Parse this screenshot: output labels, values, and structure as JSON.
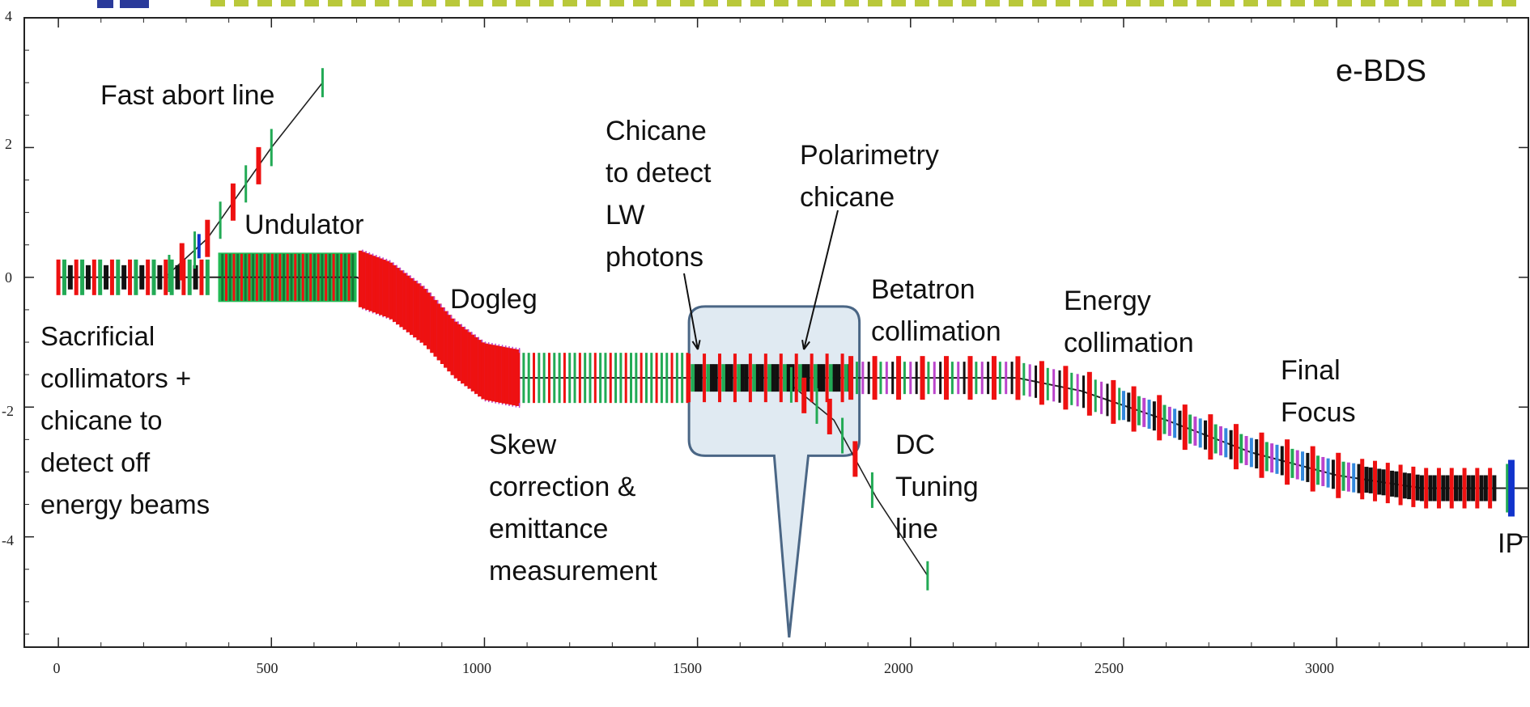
{
  "diagram_title": "e-BDS",
  "labels": {
    "fast_abort": "Fast abort line",
    "undulator": "Undulator",
    "dogleg": "Dogleg",
    "sacrificial": "Sacrificial\ncollimators +\nchicane to\ndetect off\nenergy beams",
    "chicane_lw": "Chicane\nto detect\nLW\nphotons",
    "polarimetry": "Polarimetry\nchicane",
    "betatron": "Betatron\ncollimation",
    "energy": "Energy\ncollimation",
    "final_focus": "Final\nFocus",
    "skew": "Skew\ncorrection &\nemittance\nmeasurement",
    "dc_tuning": "DC\nTuning\n line",
    "ip": "IP"
  },
  "axes": {
    "x_ticks": [
      "0",
      "500",
      "1000",
      "1500",
      "2000",
      "2500",
      "3000"
    ],
    "y_ticks": [
      "4",
      "2",
      "0",
      "-2",
      "-4"
    ],
    "xlim": [
      -80,
      3450
    ],
    "ylim": [
      -5.7,
      4
    ]
  },
  "colors": {
    "dipole": "#ee1111",
    "quad": "#22aa55",
    "sext": "#1133cc",
    "dark": "#111111",
    "undulator": "#22bb55",
    "purple": "#bb44cc",
    "callout_fill": "#dbe6f0",
    "callout_stroke": "#4a6685",
    "header_dots": "#b9c83a"
  },
  "beamline": {
    "main_path": [
      [
        0,
        0
      ],
      [
        350,
        0
      ],
      [
        700,
        0
      ],
      [
        780,
        -0.2
      ],
      [
        860,
        -0.6
      ],
      [
        930,
        -1.1
      ],
      [
        1000,
        -1.45
      ],
      [
        1080,
        -1.55
      ],
      [
        1500,
        -1.55
      ],
      [
        1850,
        -1.55
      ],
      [
        2250,
        -1.55
      ],
      [
        2400,
        -1.75
      ],
      [
        2600,
        -2.2
      ],
      [
        2800,
        -2.7
      ],
      [
        3000,
        -3.05
      ],
      [
        3200,
        -3.25
      ],
      [
        3450,
        -3.25
      ]
    ],
    "abort_path": [
      [
        250,
        0
      ],
      [
        350,
        0.6
      ],
      [
        500,
        2.0
      ],
      [
        620,
        3.0
      ]
    ],
    "tuning_path": [
      [
        1700,
        -1.55
      ],
      [
        1820,
        -2.2
      ],
      [
        1920,
        -3.4
      ],
      [
        2040,
        -4.6
      ]
    ]
  }
}
